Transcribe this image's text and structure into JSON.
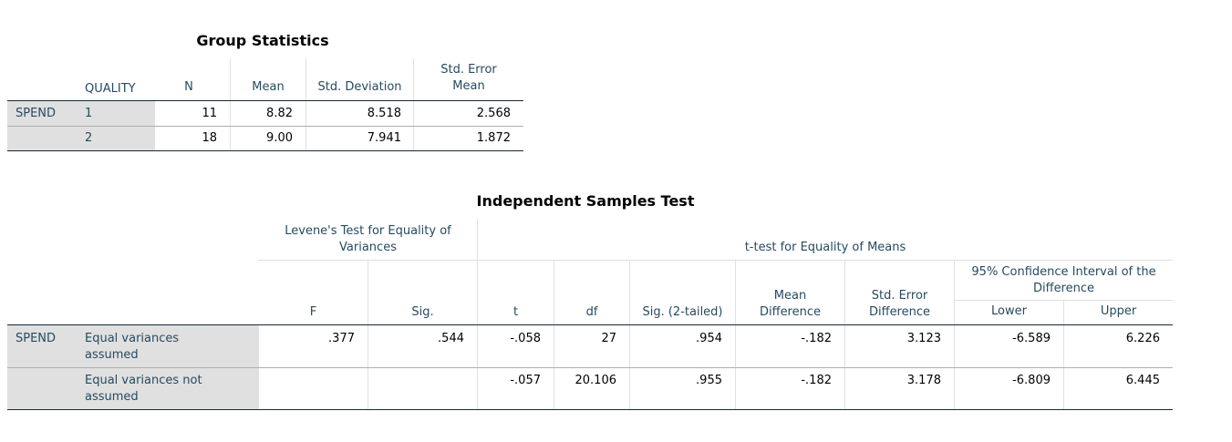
{
  "group_stats": {
    "title": "Group Statistics",
    "headers": {
      "group": "QUALITY",
      "n": "N",
      "mean": "Mean",
      "sd": "Std. Deviation",
      "se_line1": "Std. Error",
      "se_line2": "Mean"
    },
    "var_label": "SPEND",
    "rows": [
      {
        "group": "1",
        "n": "11",
        "mean": "8.82",
        "sd": "8.518",
        "se": "2.568"
      },
      {
        "group": "2",
        "n": "18",
        "mean": "9.00",
        "sd": "7.941",
        "se": "1.872"
      }
    ]
  },
  "indep_test": {
    "title": "Independent Samples Test",
    "levene_header_line1": "Levene's Test for Equality of",
    "levene_header_line2": "Variances",
    "ttest_header": "t-test for Equality of Means",
    "ci_header_line1": "95% Confidence Interval of the",
    "ci_header_line2": "Difference",
    "cols": {
      "F": "F",
      "sig": "Sig.",
      "t": "t",
      "df": "df",
      "sig2": "Sig. (2-tailed)",
      "md_line1": "Mean",
      "md_line2": "Difference",
      "sed_line1": "Std. Error",
      "sed_line2": "Difference",
      "lower": "Lower",
      "upper": "Upper"
    },
    "var_label": "SPEND",
    "rows": [
      {
        "label_line1": "Equal variances",
        "label_line2": "assumed",
        "F": ".377",
        "sig": ".544",
        "t": "-.058",
        "df": "27",
        "sig2": ".954",
        "md": "-.182",
        "sed": "3.123",
        "lower": "-6.589",
        "upper": "6.226"
      },
      {
        "label_line1": "Equal variances not",
        "label_line2": "assumed",
        "F": "",
        "sig": "",
        "t": "-.057",
        "df": "20.106",
        "sig2": ".955",
        "md": "-.182",
        "sed": "3.178",
        "lower": "-6.809",
        "upper": "6.445"
      }
    ]
  },
  "colors": {
    "header_text": "#264a60",
    "row_label_bg": "#e0e0e0",
    "rule_dark": "#152935",
    "rule_light": "#aeaeae"
  }
}
